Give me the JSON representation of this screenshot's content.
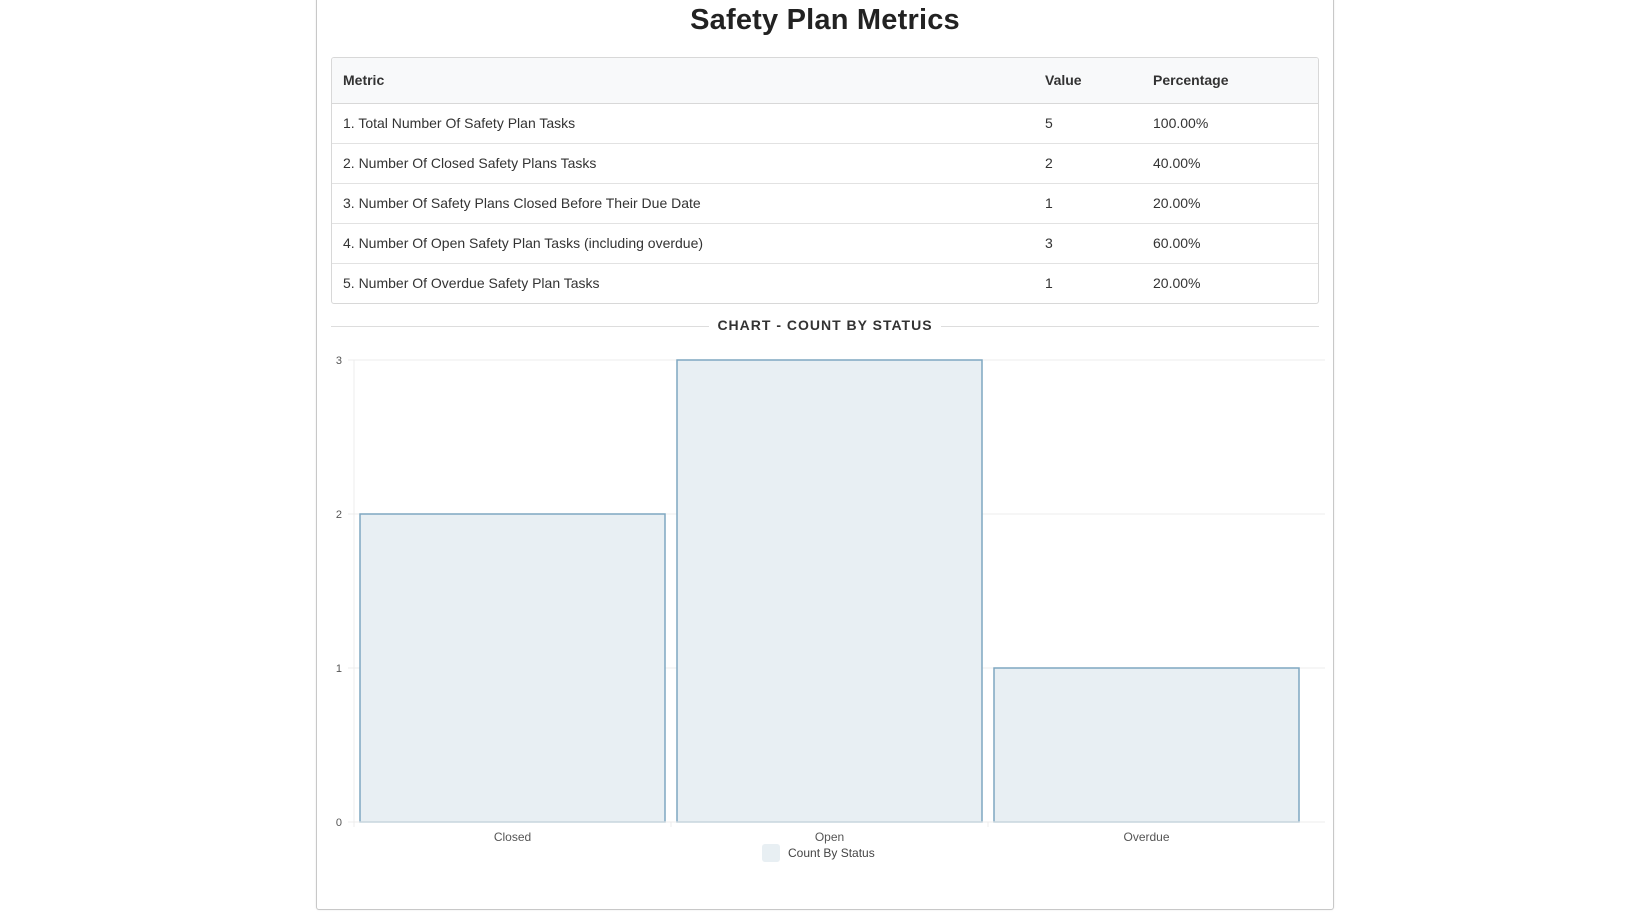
{
  "page": {
    "title": "Safety Plan Metrics"
  },
  "table": {
    "headers": {
      "metric": "Metric",
      "value": "Value",
      "percentage": "Percentage"
    },
    "rows": [
      {
        "metric": "1. Total Number Of Safety Plan Tasks",
        "value": "5",
        "percentage": "100.00%"
      },
      {
        "metric": "2. Number Of Closed Safety Plans Tasks",
        "value": "2",
        "percentage": "40.00%"
      },
      {
        "metric": "3. Number Of Safety Plans Closed Before Their Due Date",
        "value": "1",
        "percentage": "20.00%"
      },
      {
        "metric": "4. Number Of Open Safety Plan Tasks (including overdue)",
        "value": "3",
        "percentage": "60.00%"
      },
      {
        "metric": "5. Number Of Overdue Safety Plan Tasks",
        "value": "1",
        "percentage": "20.00%"
      }
    ]
  },
  "chart_section": {
    "heading": "CHART - COUNT BY STATUS"
  },
  "colors": {
    "bar_fill": "#e8eff3",
    "bar_stroke": "#7fa7c1",
    "grid": "#ececec",
    "axis_text": "#555555"
  },
  "chart_data": {
    "type": "bar",
    "categories": [
      "Closed",
      "Open",
      "Overdue"
    ],
    "series": [
      {
        "name": "Count By Status",
        "values": [
          2,
          3,
          1
        ]
      }
    ],
    "ylim": [
      0,
      3
    ],
    "yticks": [
      0,
      1,
      2,
      3
    ],
    "grid": true,
    "legend_position": "bottom-center"
  }
}
